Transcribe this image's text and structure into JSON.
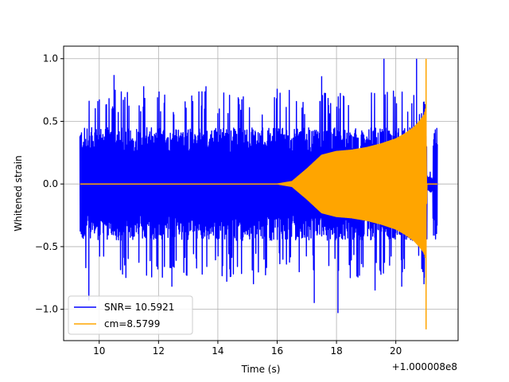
{
  "chart_data": {
    "type": "line",
    "xlabel": "Time (s)",
    "ylabel": "Whitened strain",
    "x_offset_label": "+1.000008e8",
    "xlim": [
      8.8,
      22.1
    ],
    "ylim": [
      -1.25,
      1.1
    ],
    "x_ticks": [
      10,
      12,
      14,
      16,
      18,
      20
    ],
    "x_tick_labels": [
      "10",
      "12",
      "14",
      "16",
      "18",
      "20"
    ],
    "y_ticks": [
      -1.0,
      -0.5,
      0.0,
      0.5,
      1.0
    ],
    "y_tick_labels": [
      "−1.0",
      "−0.5",
      "0.0",
      "0.5",
      "1.0"
    ],
    "grid": true,
    "legend_position": "lower-left",
    "series": [
      {
        "name": "SNR= 10.5921",
        "color": "#0000ff",
        "description": "whitened data noise",
        "x_range": [
          9.35,
          21.4
        ],
        "typical_amplitude": 0.45,
        "peak_max": 1.0,
        "peak_min": -1.03,
        "spikes": [
          {
            "x": 9.65,
            "y": -0.93
          },
          {
            "x": 10.5,
            "y": 0.87
          },
          {
            "x": 10.9,
            "y": -0.75
          },
          {
            "x": 11.5,
            "y": 0.78
          },
          {
            "x": 12.45,
            "y": -0.82
          },
          {
            "x": 13.6,
            "y": 0.78
          },
          {
            "x": 14.2,
            "y": 0.73
          },
          {
            "x": 14.3,
            "y": -0.78
          },
          {
            "x": 15.2,
            "y": -0.8
          },
          {
            "x": 16.0,
            "y": 0.76
          },
          {
            "x": 17.25,
            "y": -0.95
          },
          {
            "x": 17.5,
            "y": 0.86
          },
          {
            "x": 18.05,
            "y": -1.03
          },
          {
            "x": 19.3,
            "y": -0.85
          },
          {
            "x": 19.6,
            "y": 1.0
          },
          {
            "x": 20.2,
            "y": -0.82
          },
          {
            "x": 20.7,
            "y": 1.0
          },
          {
            "x": 20.95,
            "y": -0.8
          }
        ]
      },
      {
        "name": "cm=8.5799",
        "color": "#ffa500",
        "description": "chirp template envelope",
        "envelope": [
          {
            "x": 9.35,
            "y": 0.0
          },
          {
            "x": 16.0,
            "y": 0.0
          },
          {
            "x": 16.5,
            "y": 0.02
          },
          {
            "x": 17.0,
            "y": 0.12
          },
          {
            "x": 17.5,
            "y": 0.23
          },
          {
            "x": 18.0,
            "y": 0.26
          },
          {
            "x": 18.5,
            "y": 0.27
          },
          {
            "x": 19.0,
            "y": 0.29
          },
          {
            "x": 19.5,
            "y": 0.32
          },
          {
            "x": 20.0,
            "y": 0.36
          },
          {
            "x": 20.3,
            "y": 0.4
          },
          {
            "x": 20.6,
            "y": 0.45
          },
          {
            "x": 20.8,
            "y": 0.5
          },
          {
            "x": 20.95,
            "y": 0.55
          },
          {
            "x": 21.0,
            "y": 0.6
          },
          {
            "x": 21.05,
            "y": 0.0
          }
        ],
        "peak_max": 1.0,
        "peak_min": -1.16,
        "peak_x": 21.02
      }
    ]
  }
}
